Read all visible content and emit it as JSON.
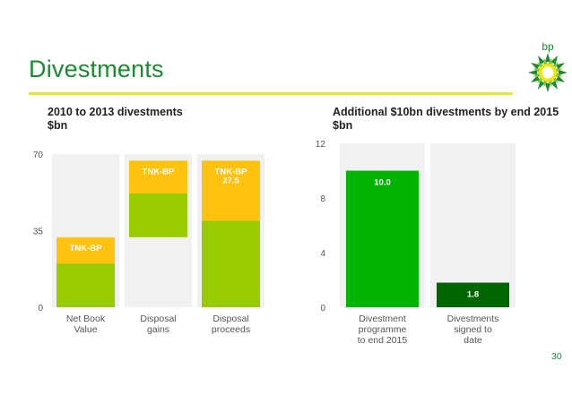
{
  "title": "Divestments",
  "page_number": "30",
  "logo_text": "bp",
  "colors": {
    "green_dark": "#1a8c2e",
    "lime": "#99cc00",
    "amber": "#ffc20e",
    "bright_green": "#00b400",
    "dark_green": "#006600",
    "panel_bg": "#f1f1f1",
    "rule": "#e0e83a"
  },
  "chart_data": [
    {
      "type": "bar",
      "title": "2010 to 2013 divestments",
      "subtitle": "$bn",
      "ylim": [
        0,
        70
      ],
      "yticks": [
        "0",
        "35",
        "70"
      ],
      "categories": [
        "Net Book Value",
        "Disposal gains",
        "Disposal proceeds"
      ],
      "category_lines": [
        [
          "Net Book",
          "Value"
        ],
        [
          "Disposal",
          "gains"
        ],
        [
          "Disposal",
          "proceeds"
        ]
      ],
      "segments": [
        {
          "category": "Net Book Value",
          "from": 0,
          "to": 20,
          "color": "lime",
          "label": ""
        },
        {
          "category": "Net Book Value",
          "from": 20,
          "to": 32,
          "color": "amber",
          "label": "TNK-BP"
        },
        {
          "category": "Disposal gains",
          "from": 32,
          "to": 52,
          "color": "lime",
          "label": ""
        },
        {
          "category": "Disposal gains",
          "from": 52,
          "to": 67,
          "color": "amber",
          "label": "TNK-BP"
        },
        {
          "category": "Disposal proceeds",
          "from": 0,
          "to": 39.5,
          "color": "lime",
          "label": ""
        },
        {
          "category": "Disposal proceeds",
          "from": 39.5,
          "to": 67,
          "color": "amber",
          "label": "TNK-BP\n27.5"
        }
      ]
    },
    {
      "type": "bar",
      "title": "Additional $10bn divestments by end 2015",
      "subtitle": "$bn",
      "ylim": [
        0,
        12
      ],
      "yticks": [
        "0",
        "4",
        "8",
        "12"
      ],
      "categories": [
        "Divestment programme to end 2015",
        "Divestments signed to date"
      ],
      "category_lines": [
        [
          "Divestment",
          "programme",
          "to end 2015"
        ],
        [
          "Divestments",
          "signed to",
          "date"
        ]
      ],
      "values": [
        10.0,
        1.8
      ],
      "value_labels": [
        "10.0",
        "1.8"
      ],
      "colors": [
        "bright_green",
        "dark_green"
      ]
    }
  ]
}
